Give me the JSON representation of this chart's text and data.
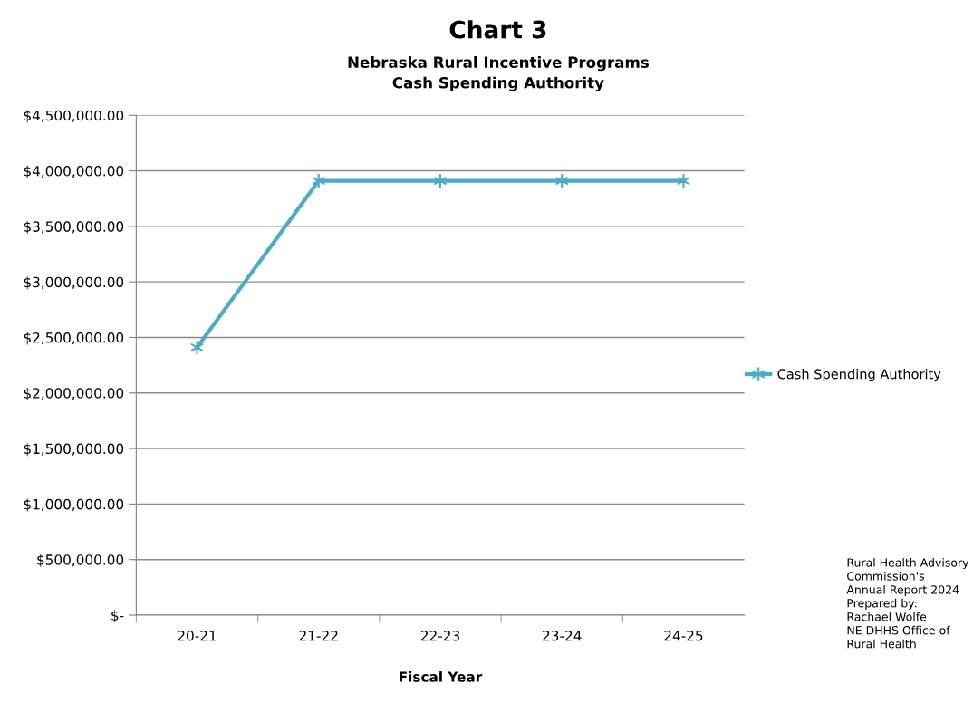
{
  "chart_data": {
    "type": "line",
    "title": "Chart 3",
    "subtitle": "Nebraska Rural Incentive Programs\nCash Spending Authority",
    "xlabel": "Fiscal Year",
    "categories": [
      "20-21",
      "21-22",
      "22-23",
      "23-24",
      "24-25"
    ],
    "series": [
      {
        "name": "Cash Spending Authority",
        "color": "#4bacc6",
        "values": [
          2410000,
          3910000,
          3910000,
          3910000,
          3910000
        ]
      }
    ],
    "ylim": [
      0,
      4500000
    ],
    "yticks": [
      {
        "value": 0,
        "label": "$-"
      },
      {
        "value": 500000,
        "label": "$500,000.00"
      },
      {
        "value": 1000000,
        "label": "$1,000,000.00"
      },
      {
        "value": 1500000,
        "label": "$1,500,000.00"
      },
      {
        "value": 2000000,
        "label": "$2,000,000.00"
      },
      {
        "value": 2500000,
        "label": "$2,500,000.00"
      },
      {
        "value": 3000000,
        "label": "$3,000,000.00"
      },
      {
        "value": 3500000,
        "label": "$3,500,000.00"
      },
      {
        "value": 4000000,
        "label": "$4,000,000.00"
      },
      {
        "value": 4500000,
        "label": "$4,500,000.00"
      }
    ],
    "grid": "y",
    "legend": "right",
    "marker": "cross",
    "line_style": "solid",
    "annotations": [
      "Rural Health Advisory\nCommission's\nAnnual Report 2024\nPrepared by:\nRachael Wolfe\nNE DHHS Office of\nRural Health"
    ]
  }
}
